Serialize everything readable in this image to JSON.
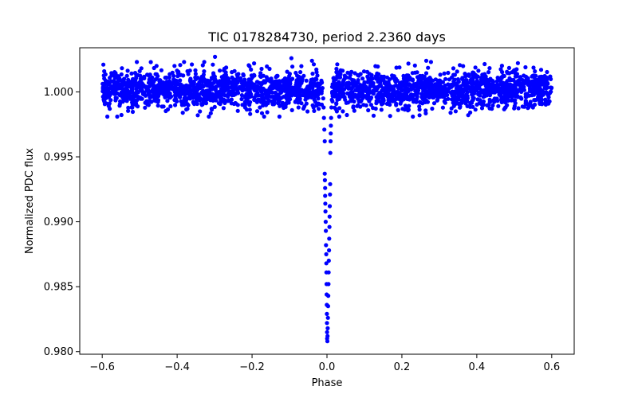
{
  "chart_data": {
    "type": "scatter",
    "title": "TIC 0178284730, period 2.2360 days",
    "xlabel": "Phase",
    "ylabel": "Normalized PDC flux",
    "xlim": [
      -0.66,
      0.66
    ],
    "ylim": [
      0.9798,
      1.0034
    ],
    "xticks": [
      {
        "value": -0.6,
        "label": "−0.6"
      },
      {
        "value": -0.4,
        "label": "−0.4"
      },
      {
        "value": -0.2,
        "label": "−0.2"
      },
      {
        "value": 0.0,
        "label": "0.0"
      },
      {
        "value": 0.2,
        "label": "0.2"
      },
      {
        "value": 0.4,
        "label": "0.4"
      },
      {
        "value": 0.6,
        "label": "0.6"
      }
    ],
    "yticks": [
      {
        "value": 0.98,
        "label": "0.980"
      },
      {
        "value": 0.985,
        "label": "0.985"
      },
      {
        "value": 0.99,
        "label": "0.990"
      },
      {
        "value": 0.995,
        "label": "0.995"
      },
      {
        "value": 1.0,
        "label": "1.000"
      }
    ],
    "grid": false,
    "marker_color": "#0000ff",
    "series": [
      {
        "points": [
          [
            -0.597,
            1.0021
          ],
          [
            -0.58,
            0.9987
          ],
          [
            -0.5,
            1.0016
          ],
          [
            -0.455,
            1.002
          ],
          [
            -0.385,
            0.9984
          ],
          [
            -0.345,
            0.9982
          ],
          [
            -0.299,
            1.0027
          ],
          [
            -0.205,
            0.9983
          ],
          [
            -0.095,
            1.0026
          ],
          [
            -0.04,
            1.0024
          ],
          [
            0.07,
            0.9988
          ],
          [
            0.19,
            0.9986
          ],
          [
            0.265,
            1.0024
          ],
          [
            0.33,
            0.9984
          ],
          [
            0.44,
            0.9987
          ],
          [
            0.53,
            1.0019
          ],
          [
            -0.012,
            1.0003
          ],
          [
            -0.01,
            0.9995
          ],
          [
            -0.009,
            0.9988
          ],
          [
            -0.008,
            0.998
          ],
          [
            -0.007,
            0.9971
          ],
          [
            -0.006,
            0.9962
          ],
          [
            -0.006,
            0.9937
          ],
          [
            -0.0055,
            0.9932
          ],
          [
            -0.005,
            0.9926
          ],
          [
            -0.0048,
            0.992
          ],
          [
            -0.0045,
            0.9914
          ],
          [
            -0.004,
            0.9908
          ],
          [
            -0.0035,
            0.99
          ],
          [
            -0.003,
            0.9893
          ],
          [
            -0.0025,
            0.9882
          ],
          [
            -0.002,
            0.9875
          ],
          [
            -0.0018,
            0.9868
          ],
          [
            -0.0015,
            0.9861
          ],
          [
            -0.001,
            0.9852
          ],
          [
            -0.0008,
            0.9844
          ],
          [
            -0.0005,
            0.9836
          ],
          [
            -0.0003,
            0.9829
          ],
          [
            0.0,
            0.9822
          ],
          [
            0.0002,
            0.9815
          ],
          [
            0.0005,
            0.981
          ],
          [
            0.001,
            0.9808
          ],
          [
            0.0015,
            0.9812
          ],
          [
            0.002,
            0.9818
          ],
          [
            0.0025,
            0.9826
          ],
          [
            0.003,
            0.9835
          ],
          [
            0.0035,
            0.9843
          ],
          [
            0.004,
            0.9852
          ],
          [
            0.0045,
            0.9861
          ],
          [
            0.005,
            0.987
          ],
          [
            0.0055,
            0.9878
          ],
          [
            0.006,
            0.9887
          ],
          [
            0.0065,
            0.9896
          ],
          [
            0.007,
            0.9904
          ],
          [
            0.0075,
            0.9912
          ],
          [
            0.008,
            0.9921
          ],
          [
            0.0085,
            0.9929
          ],
          [
            0.009,
            0.9953
          ],
          [
            0.0095,
            0.9962
          ],
          [
            0.01,
            0.9968
          ],
          [
            0.0105,
            0.9974
          ],
          [
            0.011,
            0.998
          ],
          [
            0.012,
            0.9988
          ],
          [
            0.013,
            0.9994
          ],
          [
            0.014,
            0.9999
          ]
        ],
        "band": {
          "x_min": -0.6,
          "x_max": 0.6,
          "gap_min": -0.012,
          "gap_max": 0.013,
          "y_center": 1.0002,
          "y_spread": 0.0007,
          "n": 2600
        }
      }
    ]
  }
}
